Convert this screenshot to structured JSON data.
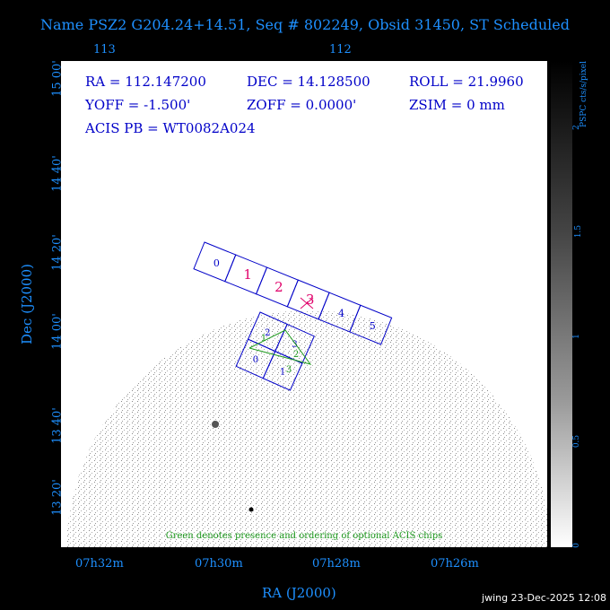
{
  "title": "Name PSZ2 G204.24+14.51, Seq # 802249, Obsid 31450, ST Scheduled",
  "top_axis": [
    "113",
    "112"
  ],
  "header": {
    "ra": "RA = 112.147200",
    "dec": "DEC = 14.128500",
    "roll": "ROLL = 21.9960",
    "yoff": "YOFF =  -1.500'",
    "zoff": "ZOFF =  0.0000'",
    "zsim": "ZSIM = 0 mm",
    "acis_pb": "ACIS PB = WT0082A024"
  },
  "y_ticks": [
    "15 00'",
    "14 40'",
    "14 20'",
    "14 00'",
    "13 40'",
    "13 20'"
  ],
  "y_axis_label": "Dec (J2000)",
  "x_ticks": [
    "07h32m",
    "07h30m",
    "07h28m",
    "07h26m"
  ],
  "x_axis_label": "RA (J2000)",
  "note": "Green denotes presence and ordering of optional ACIS chips",
  "colorbar": {
    "label": "PSPC cts/s/pixel",
    "ticks": [
      "2",
      "1.5",
      "1",
      "0.5",
      "0"
    ]
  },
  "acis_s_chips": [
    "0",
    "1",
    "2",
    "3",
    "4",
    "5"
  ],
  "acis_i_chips": [
    "0",
    "1",
    "2",
    "3"
  ],
  "optional_order": [
    "1",
    "2",
    "3"
  ],
  "footer": "jwing 23-Dec-2025 12:08",
  "colors": {
    "axis": "#1e90ff",
    "chip_outline": "#0000c8",
    "chip_highlight": "#e0006a",
    "optional": "#1e9a1e"
  }
}
